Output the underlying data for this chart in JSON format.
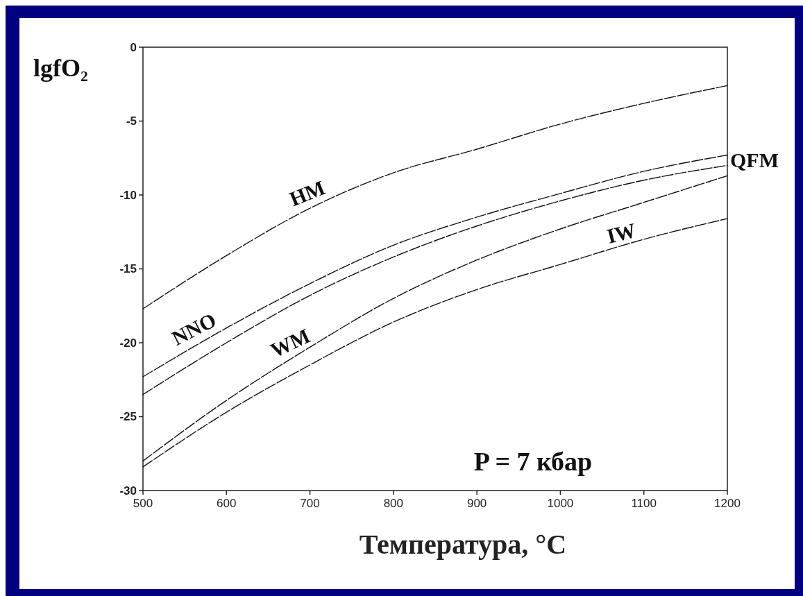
{
  "chart_data": {
    "type": "line",
    "xlabel": "Температура, °C",
    "ylabel": "lgfO₂",
    "annotations": [
      "P = 7 кбар"
    ],
    "x": [
      500,
      600,
      700,
      800,
      900,
      1000,
      1100,
      1200
    ],
    "series": [
      {
        "name": "HM",
        "color": "#111111",
        "values": [
          -17.7,
          -14.1,
          -10.9,
          -8.5,
          -6.9,
          -5.2,
          -3.8,
          -2.6
        ]
      },
      {
        "name": "NNO",
        "color": "#111111",
        "values": [
          -22.3,
          -19.0,
          -16.0,
          -13.4,
          -11.5,
          -9.9,
          -8.4,
          -7.3
        ]
      },
      {
        "name": "QFM",
        "color": "#111111",
        "values": [
          -23.5,
          -20.0,
          -16.8,
          -14.2,
          -12.1,
          -10.4,
          -9.0,
          -8.0
        ]
      },
      {
        "name": "WM",
        "color": "#111111",
        "values": [
          -28.0,
          -23.9,
          -20.3,
          -17.0,
          -14.4,
          -12.3,
          -10.5,
          -8.7
        ]
      },
      {
        "name": "IW",
        "color": "#111111",
        "values": [
          -28.4,
          -24.7,
          -21.5,
          -18.6,
          -16.4,
          -14.7,
          -13.0,
          -11.6
        ]
      }
    ],
    "xlim": [
      500,
      1200
    ],
    "xticks": [
      500,
      600,
      700,
      800,
      900,
      1000,
      1100,
      1200
    ],
    "ylim": [
      -30,
      0
    ],
    "yticks": [
      -30,
      -25,
      -20,
      -15,
      -10,
      -5,
      0
    ],
    "line_style": "dashed"
  }
}
